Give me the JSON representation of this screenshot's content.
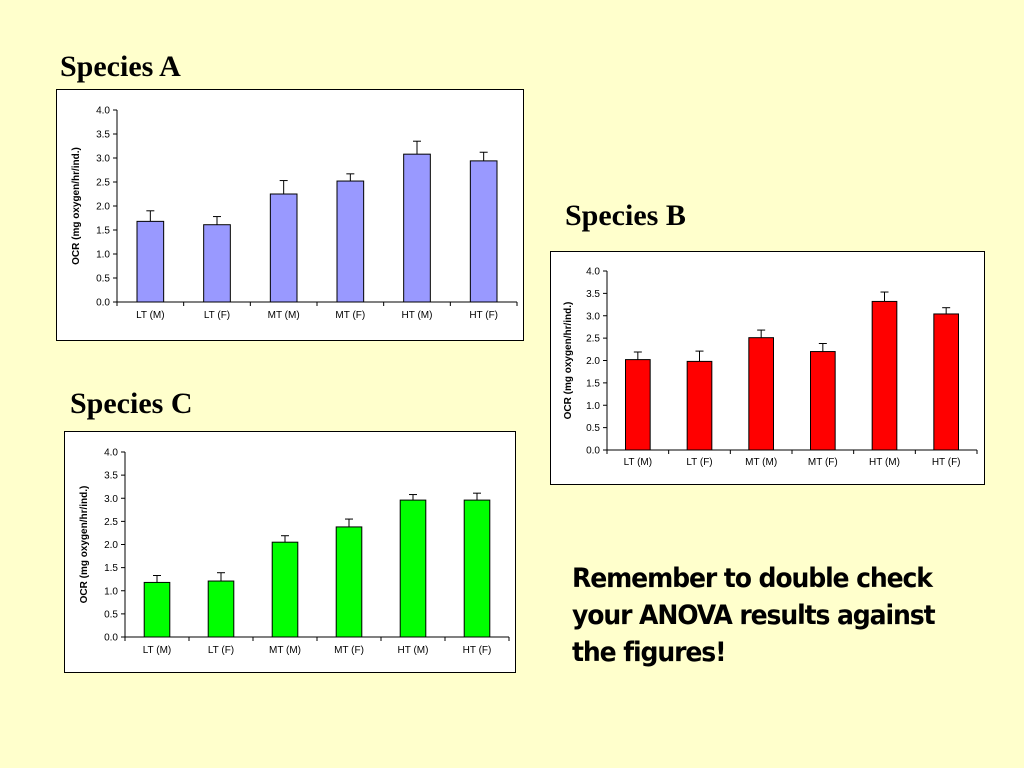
{
  "slide": {
    "background": "#ffffcc",
    "reminder_lines": [
      "Remember to double check",
      "your ANOVA results against",
      "the figures!"
    ]
  },
  "chart_data": [
    {
      "type": "bar",
      "title": "Species A",
      "ylabel": "OCR (mg oxygen/hr/ind.)",
      "xlabel": "",
      "categories": [
        "LT (M)",
        "LT (F)",
        "MT (M)",
        "MT (F)",
        "HT (M)",
        "HT (F)"
      ],
      "values": [
        1.68,
        1.61,
        2.25,
        2.52,
        3.08,
        2.94
      ],
      "errors": [
        0.22,
        0.17,
        0.28,
        0.15,
        0.27,
        0.18
      ],
      "ylim": [
        0,
        4
      ],
      "yticks": [
        "0.0",
        "0.5",
        "1.0",
        "1.5",
        "2.0",
        "2.5",
        "3.0",
        "3.5",
        "4.0"
      ],
      "color": "#9999ff",
      "grid": false,
      "legend": "none"
    },
    {
      "type": "bar",
      "title": "Species B",
      "ylabel": "OCR (mg oxygen/hr/ind.)",
      "xlabel": "",
      "categories": [
        "LT (M)",
        "LT (F)",
        "MT (M)",
        "MT (F)",
        "HT (M)",
        "HT (F)"
      ],
      "values": [
        2.02,
        1.98,
        2.51,
        2.2,
        3.32,
        3.04
      ],
      "errors": [
        0.17,
        0.23,
        0.17,
        0.18,
        0.21,
        0.14
      ],
      "ylim": [
        0,
        4
      ],
      "yticks": [
        "0.0",
        "0.5",
        "1.0",
        "1.5",
        "2.0",
        "2.5",
        "3.0",
        "3.5",
        "4.0"
      ],
      "color": "#ff0000",
      "grid": false,
      "legend": "none"
    },
    {
      "type": "bar",
      "title": "Species C",
      "ylabel": "OCR (mg oxygen/hr/ind.)",
      "xlabel": "",
      "categories": [
        "LT (M)",
        "LT (F)",
        "MT (M)",
        "MT (F)",
        "HT (M)",
        "HT (F)"
      ],
      "values": [
        1.18,
        1.21,
        2.05,
        2.38,
        2.96,
        2.96
      ],
      "errors": [
        0.15,
        0.18,
        0.14,
        0.17,
        0.12,
        0.15
      ],
      "ylim": [
        0,
        4
      ],
      "yticks": [
        "0.0",
        "0.5",
        "1.0",
        "1.5",
        "2.0",
        "2.5",
        "3.0",
        "3.5",
        "4.0"
      ],
      "color": "#00ff00",
      "grid": false,
      "legend": "none"
    }
  ]
}
